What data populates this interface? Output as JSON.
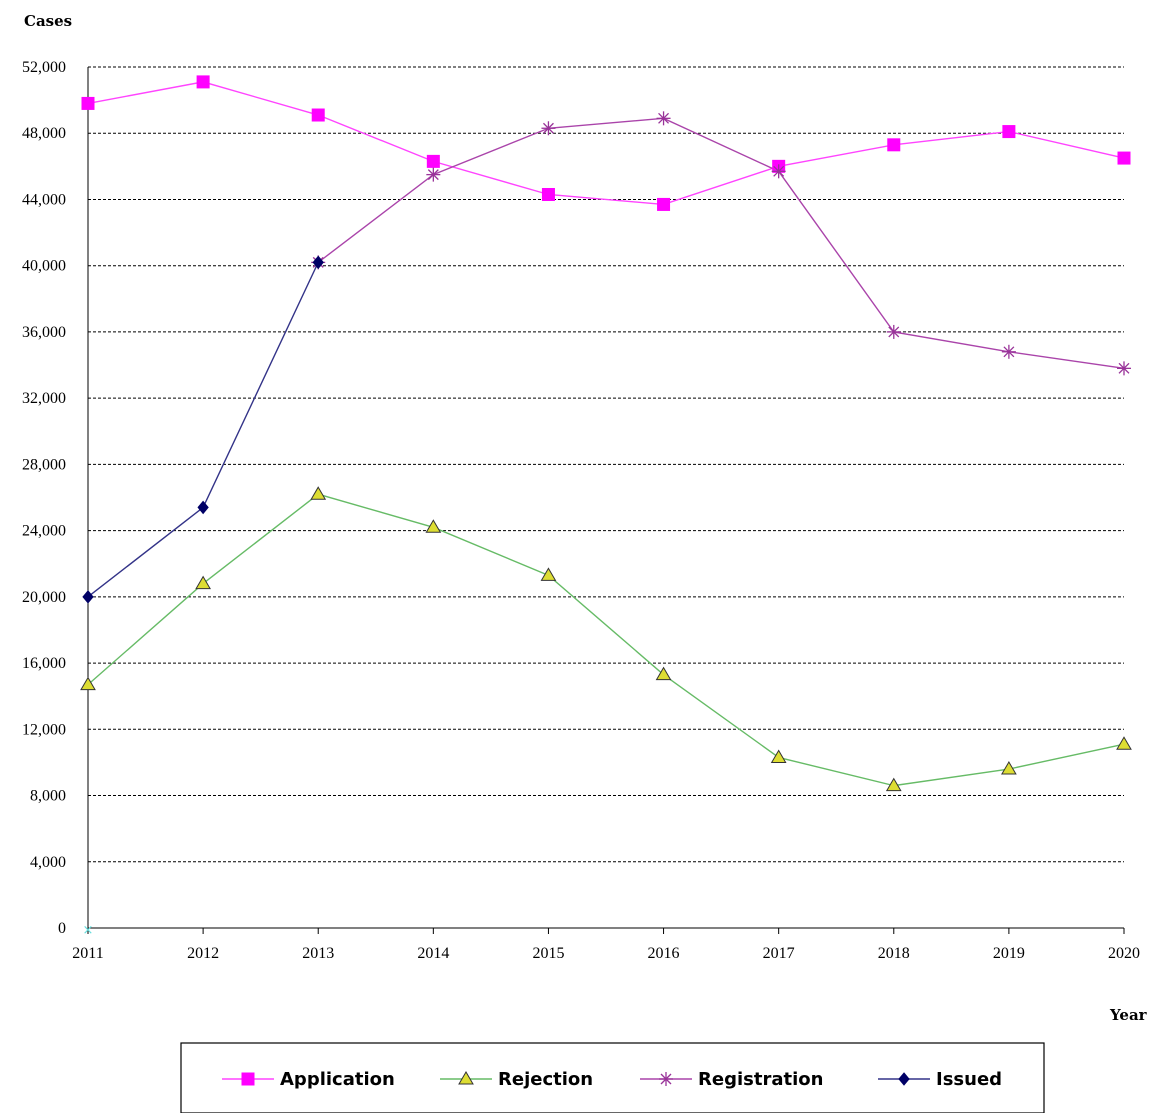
{
  "chart_data": {
    "type": "line",
    "ylabel": "Cases",
    "xlabel": "Year",
    "categories": [
      "2011",
      "2012",
      "2013",
      "2014",
      "2015",
      "2016",
      "2017",
      "2018",
      "2019",
      "2020"
    ],
    "ylim": [
      0,
      52000
    ],
    "yticks": [
      0,
      4000,
      8000,
      12000,
      16000,
      20000,
      24000,
      28000,
      32000,
      36000,
      40000,
      44000,
      48000,
      52000
    ],
    "ytick_labels": [
      "0",
      "4,000",
      "8,000",
      "12,000",
      "16,000",
      "20,000",
      "24,000",
      "28,000",
      "32,000",
      "36,000",
      "40,000",
      "44,000",
      "48,000",
      "52,000"
    ],
    "grid": "horizontal dashed",
    "legend_position": "bottom",
    "series": [
      {
        "name": "Application",
        "color": "#ff00ff",
        "line_color": "#ff44ff",
        "marker": "square",
        "values": [
          49800,
          51100,
          49100,
          46300,
          44300,
          43700,
          46000,
          47300,
          48100,
          46500
        ]
      },
      {
        "name": "Rejection",
        "color": "#dddd33",
        "line_color": "#66bb66",
        "marker": "triangle",
        "values": [
          14700,
          20800,
          26200,
          24200,
          21300,
          15300,
          10300,
          8600,
          9600,
          11100
        ]
      },
      {
        "name": "Registration",
        "color": "#993399",
        "line_color": "#aa44aa",
        "marker": "asterisk",
        "values": [
          null,
          null,
          40200,
          45500,
          48300,
          48900,
          45700,
          36000,
          34800,
          33800
        ]
      },
      {
        "name": "Issued",
        "color": "#000066",
        "line_color": "#333388",
        "marker": "diamond",
        "values": [
          20000,
          25400,
          40200,
          null,
          null,
          null,
          null,
          null,
          null,
          null
        ]
      }
    ]
  }
}
